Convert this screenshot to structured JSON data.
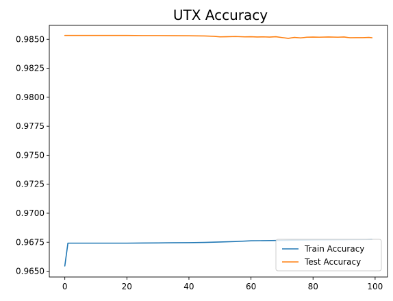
{
  "chart_data": {
    "type": "line",
    "title": "UTX Accuracy",
    "xlabel": "",
    "ylabel": "",
    "xlim": [
      -5,
      104
    ],
    "ylim": [
      0.9645,
      0.9862
    ],
    "x_ticks": [
      0,
      20,
      40,
      60,
      80,
      100
    ],
    "y_ticks": [
      0.965,
      0.9675,
      0.97,
      0.9725,
      0.975,
      0.9775,
      0.98,
      0.9825,
      0.985
    ],
    "y_tick_labels": [
      "0.9650",
      "0.9675",
      "0.9700",
      "0.9725",
      "0.9750",
      "0.9775",
      "0.9800",
      "0.9825",
      "0.9850"
    ],
    "grid": false,
    "legend_position": "lower-right",
    "series": [
      {
        "name": "Train Accuracy",
        "color": "#1f77b4",
        "points": [
          [
            0,
            0.96545
          ],
          [
            1,
            0.96742
          ],
          [
            5,
            0.96742
          ],
          [
            10,
            0.96742
          ],
          [
            15,
            0.96742
          ],
          [
            20,
            0.96742
          ],
          [
            25,
            0.96743
          ],
          [
            30,
            0.96744
          ],
          [
            35,
            0.96745
          ],
          [
            40,
            0.96746
          ],
          [
            45,
            0.96748
          ],
          [
            50,
            0.96752
          ],
          [
            55,
            0.96756
          ],
          [
            60,
            0.96762
          ],
          [
            65,
            0.96764
          ],
          [
            70,
            0.96766
          ],
          [
            75,
            0.96768
          ],
          [
            80,
            0.9677
          ],
          [
            85,
            0.96771
          ],
          [
            90,
            0.96772
          ],
          [
            95,
            0.96773
          ],
          [
            99,
            0.96774
          ]
        ]
      },
      {
        "name": "Test Accuracy",
        "color": "#ff7f0e",
        "points": [
          [
            0,
            0.98533
          ],
          [
            5,
            0.98533
          ],
          [
            10,
            0.98533
          ],
          [
            15,
            0.98533
          ],
          [
            20,
            0.98533
          ],
          [
            25,
            0.98532
          ],
          [
            30,
            0.98532
          ],
          [
            35,
            0.98531
          ],
          [
            40,
            0.9853
          ],
          [
            45,
            0.98529
          ],
          [
            48,
            0.98526
          ],
          [
            50,
            0.98521
          ],
          [
            52,
            0.98522
          ],
          [
            55,
            0.98524
          ],
          [
            58,
            0.98521
          ],
          [
            60,
            0.98522
          ],
          [
            62,
            0.9852
          ],
          [
            64,
            0.98521
          ],
          [
            66,
            0.98519
          ],
          [
            68,
            0.98522
          ],
          [
            70,
            0.98515
          ],
          [
            72,
            0.98508
          ],
          [
            74,
            0.98516
          ],
          [
            76,
            0.98512
          ],
          [
            78,
            0.98518
          ],
          [
            80,
            0.98519
          ],
          [
            82,
            0.98518
          ],
          [
            85,
            0.9852
          ],
          [
            88,
            0.98518
          ],
          [
            90,
            0.9852
          ],
          [
            92,
            0.98513
          ],
          [
            94,
            0.98514
          ],
          [
            96,
            0.98514
          ],
          [
            98,
            0.98516
          ],
          [
            99,
            0.98513
          ]
        ]
      }
    ]
  }
}
